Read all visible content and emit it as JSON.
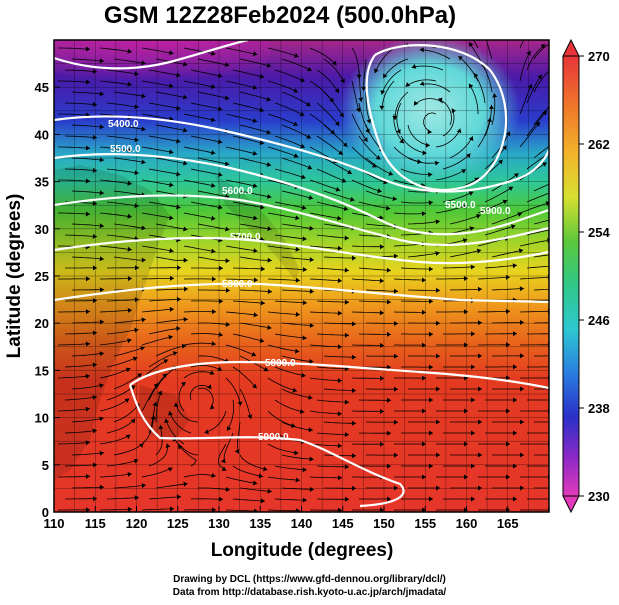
{
  "title": "GSM 12Z28Feb2024 (500.0hPa)",
  "credits": {
    "line1": "Drawing by DCL (https://www.gfd-dennou.org/library/dcl/)",
    "line2": "Data from http://database.rish.kyoto-u.ac.jp/arch/jmadata/"
  },
  "map": {
    "x_axis": {
      "label": "Longitude (degrees)",
      "range": [
        110,
        170
      ],
      "ticks": [
        "110",
        "115",
        "120",
        "125",
        "130",
        "135",
        "140",
        "145",
        "150",
        "155",
        "160",
        "165"
      ]
    },
    "y_axis": {
      "label": "Latitude  (degrees)",
      "range": [
        0,
        50
      ],
      "ticks": [
        "0",
        "5",
        "10",
        "15",
        "20",
        "25",
        "30",
        "35",
        "40",
        "45"
      ]
    },
    "contour_labels": [
      "5400.0",
      "5500.0",
      "5600.0",
      "5700.0",
      "5800.0",
      "5500.0",
      "5800.0",
      "5900.0",
      "5900.0"
    ],
    "colorbar": {
      "ticks": [
        "270",
        "262",
        "254",
        "246",
        "238",
        "230"
      ],
      "range": [
        230,
        270
      ]
    }
  }
}
